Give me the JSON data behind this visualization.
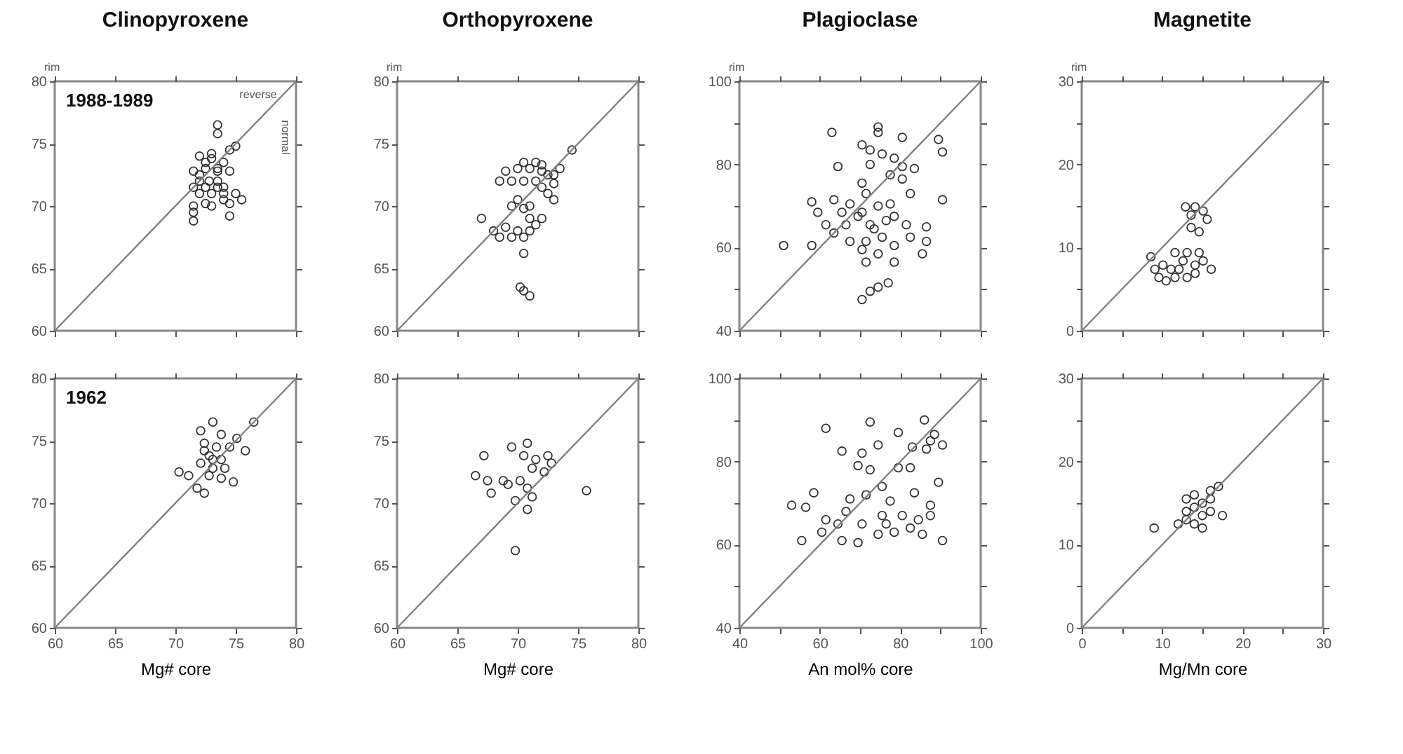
{
  "chart_data": [
    {
      "type": "scatter",
      "title": "Clinopyroxene",
      "ylabel": "rim",
      "tick_labels": "y",
      "marker": "circle",
      "annotations": [
        "1988-1989",
        "reverse",
        "normal"
      ],
      "xlim": [
        60,
        80
      ],
      "ylim": [
        60,
        80
      ],
      "xticks": [
        60,
        65,
        70,
        75,
        80
      ],
      "yticks": [
        60,
        65,
        70,
        75,
        80
      ],
      "series": [
        {
          "color": "#333333",
          "x": [
            73.5,
            73.5,
            75,
            74.5,
            72,
            72.5,
            73,
            73.5,
            71.5,
            72,
            74.5,
            72.8,
            73.5,
            74,
            71.5,
            72,
            73,
            74,
            75,
            75.5,
            74.5,
            72.5,
            71.5,
            73,
            71.5,
            71.5,
            74.5,
            73.5,
            72.5,
            74,
            73,
            72,
            73.5,
            72.5,
            74
          ],
          "values": [
            76.5,
            75.8,
            74.8,
            74.5,
            74,
            73.5,
            73.8,
            73,
            72.8,
            72.5,
            72.8,
            72,
            72,
            71.5,
            71.5,
            71,
            71,
            71,
            71,
            70.5,
            70.2,
            70.2,
            70,
            70,
            69.5,
            68.8,
            69.2,
            72.8,
            73,
            73.5,
            74.2,
            72,
            71.5,
            71.5,
            70.5
          ]
        },
        {
          "type": "line",
          "marker": "none",
          "color": "#808080",
          "x": [
            60,
            80
          ],
          "values": [
            60,
            80
          ]
        }
      ]
    },
    {
      "type": "scatter",
      "title": "Orthopyroxene",
      "ylabel": "rim",
      "tick_labels": "y",
      "marker": "circle",
      "xlim": [
        60,
        80
      ],
      "ylim": [
        60,
        80
      ],
      "xticks": [
        60,
        65,
        70,
        75,
        80
      ],
      "yticks": [
        60,
        65,
        70,
        75,
        80
      ],
      "series": [
        {
          "color": "#333333",
          "x": [
            74.5,
            73.5,
            73,
            72.5,
            72,
            71,
            70,
            69,
            68.5,
            69.5,
            70.5,
            71.5,
            72,
            73,
            72.5,
            73,
            70,
            71,
            69.5,
            70.5,
            67,
            72,
            71,
            68,
            69,
            70,
            71,
            68.5,
            69.5,
            70.5,
            71.5,
            70.5,
            70.2,
            70.5,
            71,
            71.5,
            70.5,
            72
          ],
          "values": [
            74.5,
            73,
            72.5,
            72.5,
            72.8,
            73,
            73,
            72.8,
            72,
            72,
            72,
            72,
            71.5,
            71.8,
            71,
            70.5,
            70.5,
            70,
            70,
            69.8,
            69,
            69,
            69,
            68,
            68.3,
            68,
            68,
            67.5,
            67.5,
            67.5,
            68.5,
            66.2,
            63.5,
            63.2,
            62.8,
            73.5,
            73.5,
            73.3
          ]
        },
        {
          "type": "line",
          "marker": "none",
          "color": "#808080",
          "x": [
            60,
            80
          ],
          "values": [
            60,
            80
          ]
        }
      ]
    },
    {
      "type": "scatter",
      "title": "Plagioclase",
      "ylabel": "rim",
      "tick_labels": "y",
      "marker": "circle",
      "xlim": [
        40,
        100
      ],
      "ylim": [
        40,
        100
      ],
      "xticks": [
        40,
        {
          "value": 50,
          "label": null
        },
        60,
        {
          "value": 70,
          "label": null
        },
        80,
        {
          "value": 90,
          "label": null
        },
        100
      ],
      "yticks": [
        40,
        {
          "value": 50,
          "label": null
        },
        60,
        {
          "value": 70,
          "label": null
        },
        80,
        {
          "value": 90,
          "label": null
        },
        100
      ],
      "series": [
        {
          "color": "#333333",
          "x": [
            63,
            74.5,
            74.5,
            80.5,
            89.5,
            90.5,
            70.5,
            72.5,
            75.5,
            78.5,
            64.5,
            72.5,
            80.5,
            83.5,
            77.5,
            80.5,
            70.5,
            82.5,
            90.5,
            71.5,
            58,
            63.5,
            67.5,
            74.5,
            77.5,
            59.5,
            65.5,
            70.5,
            78.5,
            61.5,
            66.5,
            72.5,
            76.5,
            81.5,
            86.5,
            51,
            58,
            63.5,
            67.5,
            71.5,
            75.5,
            78.5,
            82.5,
            86.5,
            85.5,
            70.5,
            74.5,
            71.5,
            78.5,
            70.5,
            72.5,
            74.5,
            77,
            69.5,
            73.5
          ],
          "values": [
            87.7,
            87.7,
            89,
            86.5,
            86,
            83,
            84.7,
            83.5,
            82.5,
            81.5,
            79.5,
            80,
            79.5,
            79,
            77.5,
            76.5,
            75.5,
            73,
            71.5,
            73,
            71,
            71.5,
            70.5,
            70,
            70.5,
            68.5,
            68.5,
            68.5,
            67.5,
            65.5,
            65.5,
            65.5,
            66.5,
            65.5,
            65,
            60.5,
            60.5,
            63.5,
            61.5,
            61.5,
            62.5,
            60.5,
            62.5,
            61.5,
            58.5,
            59.5,
            58.5,
            56.5,
            56.5,
            47.5,
            49.5,
            50.5,
            51.5,
            67.5,
            64.5
          ]
        },
        {
          "type": "line",
          "marker": "none",
          "color": "#808080",
          "x": [
            40,
            100
          ],
          "values": [
            40,
            100
          ]
        }
      ]
    },
    {
      "type": "scatter",
      "title": "Magnetite",
      "ylabel": "rim",
      "tick_labels": "y",
      "marker": "circle",
      "xlim": [
        0,
        30
      ],
      "ylim": [
        0,
        30
      ],
      "xticks": [
        0,
        {
          "value": 5,
          "label": null
        },
        10,
        {
          "value": 15,
          "label": null
        },
        20,
        {
          "value": 25,
          "label": null
        },
        30
      ],
      "yticks": [
        0,
        {
          "value": 5,
          "label": null
        },
        10,
        {
          "value": 15,
          "label": null
        },
        20,
        {
          "value": 25,
          "label": null
        },
        30
      ],
      "series": [
        {
          "color": "#333333",
          "x": [
            12.9,
            14.1,
            15.1,
            13.6,
            15.6,
            13.6,
            14.6,
            8.6,
            10.1,
            11.6,
            13.1,
            14.6,
            12.6,
            14.1,
            11.1,
            16.1,
            9.6,
            11.6,
            13.1,
            14.1,
            10.5,
            9.1,
            15.1,
            12.1
          ],
          "values": [
            14.9,
            14.9,
            14.4,
            13.9,
            13.4,
            12.4,
            11.9,
            8.9,
            7.9,
            9.4,
            9.4,
            9.4,
            8.4,
            7.9,
            7.4,
            7.4,
            6.4,
            6.4,
            6.4,
            6.9,
            6,
            7.4,
            8.4,
            7.4
          ]
        },
        {
          "type": "line",
          "marker": "none",
          "color": "#808080",
          "x": [
            0,
            30
          ],
          "values": [
            0,
            30
          ]
        }
      ]
    },
    {
      "type": "scatter",
      "xlabel": "Mg# core",
      "marker": "circle",
      "annotations": [
        "1962"
      ],
      "xlim": [
        60,
        80
      ],
      "ylim": [
        60,
        80
      ],
      "xticks": [
        60,
        65,
        70,
        75,
        80
      ],
      "yticks": [
        60,
        65,
        70,
        75,
        80
      ],
      "series": [
        {
          "color": "#333333",
          "x": [
            76.5,
            73.1,
            72.1,
            73.8,
            75.1,
            72.4,
            73.4,
            74.5,
            75.8,
            72.8,
            73.8,
            72.1,
            73.1,
            74.1,
            70.3,
            71.1,
            72.8,
            73.8,
            74.8,
            71.8,
            72.4,
            73.1,
            72.4
          ],
          "values": [
            76.5,
            76.5,
            75.8,
            75.5,
            75.2,
            74.8,
            74.5,
            74.5,
            74.2,
            73.8,
            73.5,
            73.2,
            72.8,
            72.8,
            72.5,
            72.2,
            72.2,
            72,
            71.7,
            71.2,
            70.8,
            73.5,
            74.2
          ]
        },
        {
          "type": "line",
          "marker": "none",
          "color": "#808080",
          "x": [
            60,
            80
          ],
          "values": [
            60,
            80
          ]
        }
      ]
    },
    {
      "type": "scatter",
      "xlabel": "Mg# core",
      "marker": "circle",
      "xlim": [
        60,
        80
      ],
      "ylim": [
        60,
        80
      ],
      "xticks": [
        60,
        65,
        70,
        75,
        80
      ],
      "yticks": [
        60,
        65,
        70,
        75,
        80
      ],
      "series": [
        {
          "color": "#333333",
          "x": [
            67.2,
            66.5,
            67.5,
            67.8,
            69.5,
            70.8,
            70.5,
            71.5,
            72.5,
            71.2,
            72.2,
            70.2,
            69.2,
            70.8,
            69.8,
            71.2,
            70.8,
            69.8,
            75.7,
            72.8,
            68.8
          ],
          "values": [
            73.8,
            72.2,
            71.8,
            70.8,
            74.5,
            74.8,
            73.8,
            73.5,
            73.8,
            72.8,
            72.5,
            71.8,
            71.5,
            71.2,
            70.2,
            70.5,
            69.5,
            66.2,
            71,
            73.2,
            71.8
          ]
        },
        {
          "type": "line",
          "marker": "none",
          "color": "#808080",
          "x": [
            60,
            80
          ],
          "values": [
            60,
            80
          ]
        }
      ]
    },
    {
      "type": "scatter",
      "xlabel": "An mol% core",
      "marker": "circle",
      "xlim": [
        40,
        100
      ],
      "ylim": [
        40,
        100
      ],
      "xticks": [
        40,
        {
          "value": 50,
          "label": null
        },
        60,
        {
          "value": 70,
          "label": null
        },
        80,
        {
          "value": 90,
          "label": null
        },
        100
      ],
      "yticks": [
        40,
        {
          "value": 50,
          "label": null
        },
        60,
        {
          "value": 70,
          "label": null
        },
        80,
        {
          "value": 90,
          "label": null
        },
        100
      ],
      "series": [
        {
          "color": "#333333",
          "x": [
            61.5,
            72.5,
            86,
            79.5,
            88.5,
            87.5,
            90.5,
            74.5,
            65.5,
            70.5,
            83,
            86.5,
            69.5,
            72.5,
            79.5,
            82.5,
            89.5,
            75.5,
            58.5,
            83.5,
            53,
            56.5,
            67.5,
            71.5,
            77.5,
            87.5,
            61.5,
            66.5,
            70.5,
            75.5,
            80.5,
            84.5,
            87.5,
            55.5,
            60.5,
            65.5,
            69.5,
            74.5,
            78.5,
            82.5,
            85.5,
            90.5,
            76.5,
            64.5
          ],
          "values": [
            88,
            89.5,
            90,
            87,
            86.5,
            85,
            84,
            84,
            82.5,
            82,
            83.5,
            83,
            79,
            78,
            78.5,
            78.5,
            75,
            74,
            72.5,
            72.5,
            69.5,
            69,
            71,
            72,
            70.5,
            69.5,
            66,
            68,
            65,
            67,
            67,
            66,
            67,
            61,
            63,
            61,
            60.5,
            62.5,
            63,
            64,
            62.5,
            61,
            65,
            65
          ]
        },
        {
          "type": "line",
          "marker": "none",
          "color": "#808080",
          "x": [
            40,
            100
          ],
          "values": [
            40,
            100
          ]
        }
      ]
    },
    {
      "type": "scatter",
      "xlabel": "Mg/Mn core",
      "marker": "circle",
      "xlim": [
        0,
        30
      ],
      "ylim": [
        0,
        30
      ],
      "xticks": [
        0,
        {
          "value": 5,
          "label": null
        },
        10,
        {
          "value": 15,
          "label": null
        },
        20,
        {
          "value": 25,
          "label": null
        },
        30
      ],
      "yticks": [
        0,
        {
          "value": 5,
          "label": null
        },
        10,
        {
          "value": 15,
          "label": null
        },
        20,
        {
          "value": 25,
          "label": null
        },
        30
      ],
      "series": [
        {
          "color": "#333333",
          "x": [
            9,
            12,
            13,
            14,
            16,
            17,
            14,
            15,
            16,
            17.5,
            15,
            13,
            15,
            14,
            13,
            16
          ],
          "values": [
            12,
            12.5,
            15.5,
            16,
            16.5,
            17,
            14.5,
            15,
            14,
            13.5,
            13.5,
            13,
            12,
            12.5,
            14,
            15.5
          ]
        },
        {
          "type": "line",
          "marker": "none",
          "color": "#808080",
          "x": [
            0,
            30
          ],
          "values": [
            0,
            30
          ]
        }
      ]
    }
  ]
}
